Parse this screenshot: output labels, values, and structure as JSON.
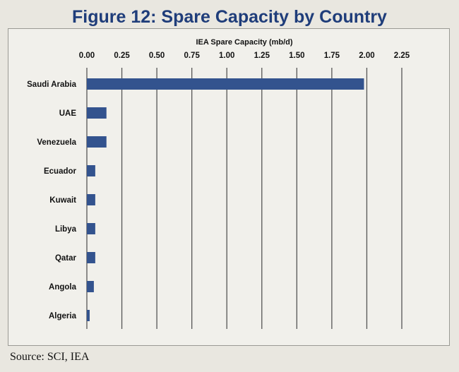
{
  "figure_title": "Figure 12:  Spare Capacity by Country",
  "source_note": "Source:  SCI, IEA",
  "colors": {
    "bar": "#33538e",
    "gridline": "#555555",
    "title": "#1f3d7a"
  },
  "chart_data": {
    "type": "bar",
    "orientation": "horizontal",
    "xlabel": "IEA Spare Capacity (mb/d)",
    "ylabel": "",
    "xlim": [
      0,
      2.25
    ],
    "x_axis_position": "top",
    "ticks": [
      "0.00",
      "0.25",
      "0.50",
      "0.75",
      "1.00",
      "1.25",
      "1.50",
      "1.75",
      "2.00",
      "2.25"
    ],
    "grid": "vertical",
    "categories": [
      "Saudi Arabia",
      "UAE",
      "Venezuela",
      "Ecuador",
      "Kuwait",
      "Libya",
      "Qatar",
      "Angola",
      "Algeria"
    ],
    "values": [
      1.98,
      0.14,
      0.14,
      0.06,
      0.06,
      0.06,
      0.06,
      0.05,
      0.02
    ]
  }
}
